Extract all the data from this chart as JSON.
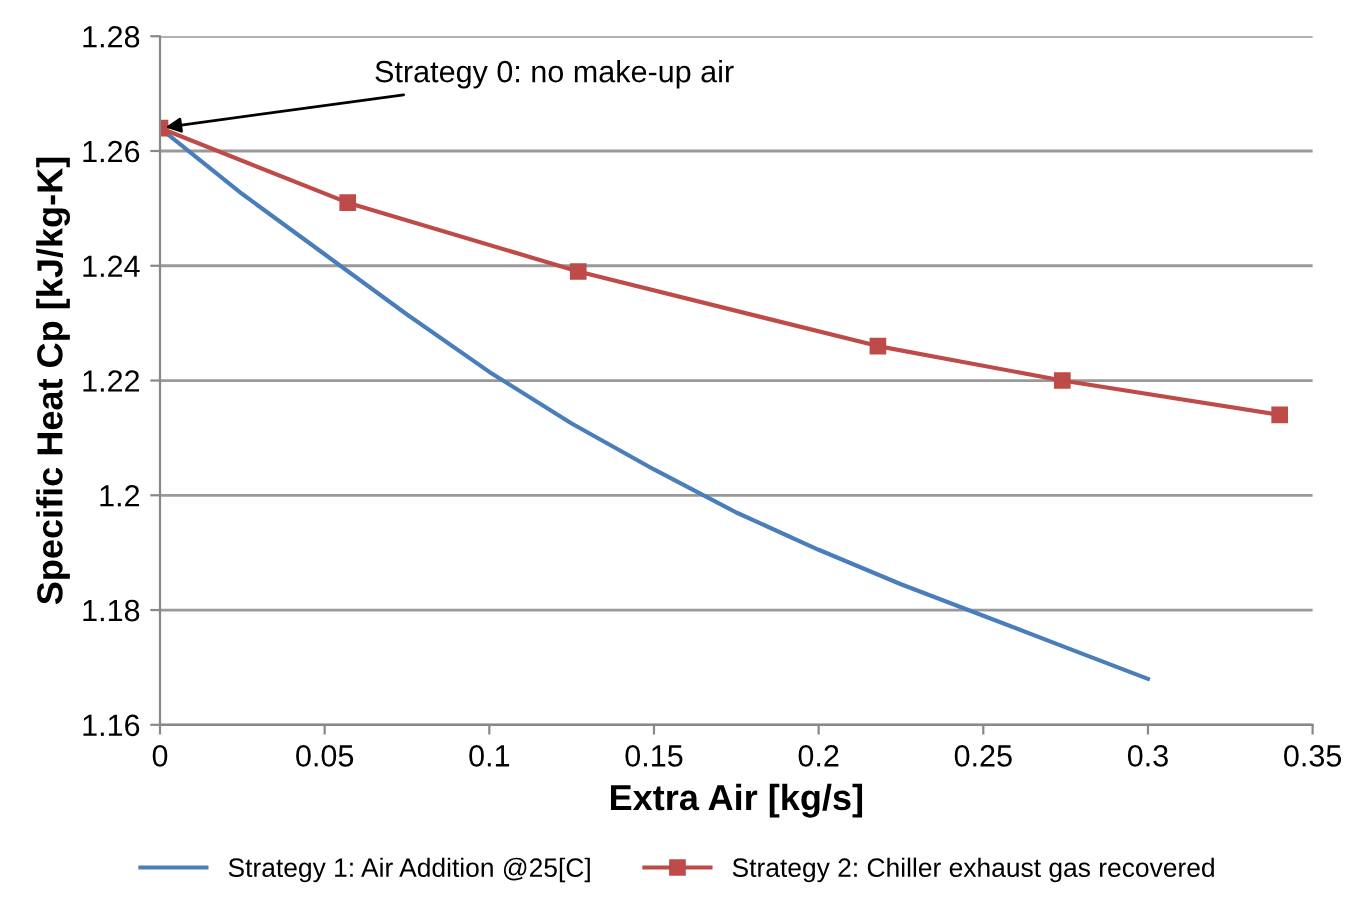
{
  "chart_data": {
    "type": "line",
    "xlabel": "Extra Air [kg/s]",
    "ylabel": "Specific Heat Cp [kJ/kg-K]",
    "xlim": [
      0,
      0.35
    ],
    "xticks": [
      0,
      0.05,
      0.1,
      0.15,
      0.2,
      0.25,
      0.3,
      0.35
    ],
    "ylim": [
      1.16,
      1.28
    ],
    "yticks": [
      1.16,
      1.18,
      {
        "value": 1.2,
        "label": "1.2"
      },
      1.22,
      1.24,
      1.26,
      1.28
    ],
    "grid": "y",
    "legend": "bottom",
    "annotations": [
      {
        "text": "Strategy 0: no make-up air",
        "x": 0,
        "y": 1.264
      }
    ],
    "series": [
      {
        "name": "Strategy 1: Air Addition @25[C]",
        "color": "#4a7ebb",
        "marker": "none",
        "x": [
          0,
          0.025,
          0.05,
          0.075,
          0.1,
          0.125,
          0.15,
          0.175,
          0.2,
          0.225,
          0.25,
          0.275,
          0.3
        ],
        "values": [
          1.264,
          1.2525,
          1.242,
          1.2315,
          1.2215,
          1.2125,
          1.2045,
          1.197,
          1.1905,
          1.1845,
          1.179,
          1.1735,
          1.168
        ]
      },
      {
        "name": "Strategy 2: Chiller exhaust gas recovered",
        "color": "#be4b48",
        "marker": "square",
        "x": [
          0,
          0.057,
          0.127,
          0.218,
          0.274,
          0.34
        ],
        "values": [
          1.264,
          1.251,
          1.239,
          1.226,
          1.22,
          1.214
        ]
      }
    ]
  }
}
